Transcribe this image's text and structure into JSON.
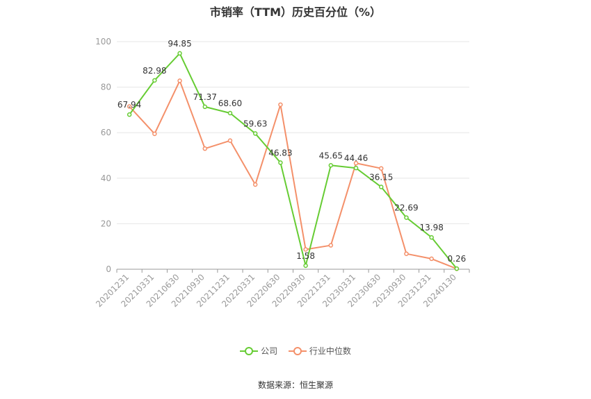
{
  "title": "市销率（TTM）历史百分位（%）",
  "source": "数据来源：恒生聚源",
  "colors": {
    "company": "#66cc33",
    "industry": "#f4906a",
    "grid": "#e6e6e6",
    "axis": "#999999",
    "label": "#333333",
    "tick": "#999999"
  },
  "chart_data": {
    "type": "line",
    "categories": [
      "20201231",
      "20210331",
      "20210630",
      "20210930",
      "20211231",
      "20220331",
      "20220630",
      "20220930",
      "20221231",
      "20230331",
      "20230630",
      "20230930",
      "20231231",
      "20240130"
    ],
    "ylim": [
      0,
      100
    ],
    "yticks": [
      0,
      20,
      40,
      60,
      80,
      100
    ],
    "grid": true,
    "legend_position": "bottom",
    "series": [
      {
        "name": "公司",
        "values": [
          67.94,
          82.98,
          94.85,
          71.37,
          68.6,
          59.63,
          46.83,
          1.58,
          45.65,
          44.46,
          36.15,
          22.69,
          13.98,
          0.26
        ],
        "labels": [
          "67.94",
          "82.98",
          "94.85",
          "71.37",
          "68.60",
          "59.63",
          "46.83",
          "1.58",
          "45.65",
          "44.46",
          "36.15",
          "22.69",
          "13.98",
          "0.26"
        ]
      },
      {
        "name": "行业中位数",
        "values": [
          71.5,
          59.5,
          82.8,
          53.0,
          56.5,
          37.2,
          72.3,
          8.7,
          10.5,
          46.6,
          44.3,
          6.8,
          4.6,
          0.2
        ]
      }
    ]
  }
}
